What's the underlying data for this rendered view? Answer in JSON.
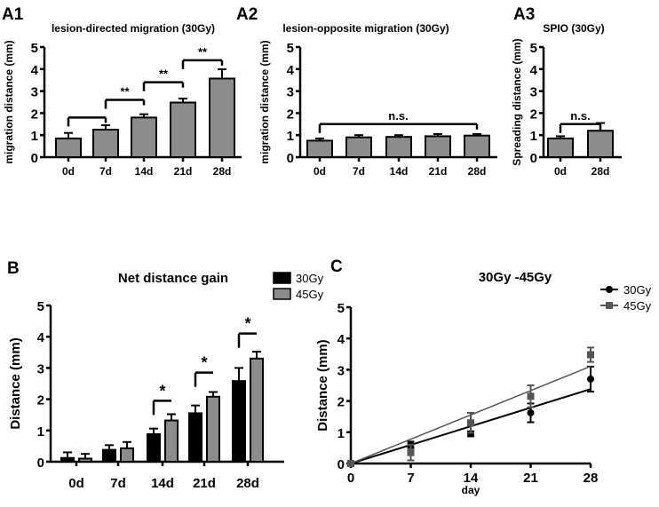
{
  "colors": {
    "dark": "#000000",
    "gray": "#8c8c8c",
    "line45": "#555555"
  },
  "chart_data": [
    {
      "id": "A1",
      "panel_label": "A1",
      "type": "bar",
      "title": "lesion-directed migration (30Gy)",
      "ylabel": "migration distance (mm)",
      "xlabel": "",
      "ylim": [
        0,
        5
      ],
      "yticks": [
        0,
        1,
        2,
        3,
        4,
        5
      ],
      "categories": [
        "0d",
        "7d",
        "14d",
        "21d",
        "28d"
      ],
      "series": [
        {
          "name": "30Gy",
          "values": [
            0.85,
            1.25,
            1.8,
            2.48,
            3.57
          ],
          "errors": [
            0.25,
            0.2,
            0.15,
            0.18,
            0.42
          ]
        }
      ],
      "annotations": [
        {
          "from": 0,
          "to": 1,
          "y": 1.8,
          "text": ""
        },
        {
          "from": 1,
          "to": 2,
          "y": 2.6,
          "text": "**"
        },
        {
          "from": 2,
          "to": 3,
          "y": 3.4,
          "text": "**"
        },
        {
          "from": 3,
          "to": 4,
          "y": 4.4,
          "text": "**"
        }
      ]
    },
    {
      "id": "A2",
      "panel_label": "A2",
      "type": "bar",
      "title": "lesion-opposite migration (30Gy)",
      "ylabel": "migration distance (mm)",
      "xlabel": "",
      "ylim": [
        0,
        5
      ],
      "yticks": [
        0,
        1,
        2,
        3,
        4,
        5
      ],
      "categories": [
        "0d",
        "7d",
        "14d",
        "21d",
        "28d"
      ],
      "series": [
        {
          "name": "30Gy",
          "values": [
            0.75,
            0.9,
            0.92,
            0.95,
            0.98
          ],
          "errors": [
            0.1,
            0.1,
            0.08,
            0.1,
            0.07
          ]
        }
      ],
      "annotations": [
        {
          "from": 0,
          "to": 4,
          "y": 1.5,
          "text": "n.s."
        }
      ]
    },
    {
      "id": "A3",
      "panel_label": "A3",
      "type": "bar",
      "title": "SPIO (30Gy)",
      "ylabel": "Spreading distance (mm)",
      "xlabel": "",
      "ylim": [
        0,
        5
      ],
      "yticks": [
        0,
        1,
        2,
        3,
        4,
        5
      ],
      "categories": [
        "0d",
        "28d"
      ],
      "series": [
        {
          "name": "30Gy",
          "values": [
            0.85,
            1.2
          ],
          "errors": [
            0.1,
            0.35
          ]
        }
      ],
      "annotations": [
        {
          "from": 0,
          "to": 1,
          "y": 1.5,
          "text": "n.s."
        }
      ]
    },
    {
      "id": "B",
      "panel_label": "B",
      "type": "bar",
      "title": "Net distance gain",
      "ylabel": "Distance (mm)",
      "xlabel": "",
      "ylim": [
        0,
        5
      ],
      "yticks": [
        0,
        1,
        2,
        3,
        4,
        5
      ],
      "legend": "top-right",
      "categories": [
        "0d",
        "7d",
        "14d",
        "21d",
        "28d"
      ],
      "series": [
        {
          "name": "30Gy",
          "values": [
            0.12,
            0.38,
            0.88,
            1.55,
            2.58
          ],
          "errors": [
            0.18,
            0.15,
            0.18,
            0.25,
            0.42
          ]
        },
        {
          "name": "45Gy",
          "values": [
            0.1,
            0.43,
            1.32,
            2.08,
            3.3
          ],
          "errors": [
            0.15,
            0.2,
            0.2,
            0.15,
            0.22
          ]
        }
      ],
      "annotations": [
        {
          "group": 2,
          "y": 1.95,
          "text": "*"
        },
        {
          "group": 3,
          "y": 2.85,
          "text": "*"
        },
        {
          "group": 4,
          "y": 4.1,
          "text": "*"
        }
      ]
    },
    {
      "id": "C",
      "panel_label": "C",
      "type": "line",
      "title": "30Gy -45Gy",
      "ylabel": "Distance (mm)",
      "xlabel": "day",
      "ylim": [
        0,
        5
      ],
      "xlim": [
        0,
        28
      ],
      "yticks": [
        0,
        1,
        2,
        3,
        4,
        5
      ],
      "xticks": [
        0,
        7,
        14,
        21,
        28
      ],
      "legend": "top-right",
      "series": [
        {
          "name": "30Gy",
          "x": [
            0,
            7,
            14,
            21,
            28
          ],
          "values": [
            0,
            0.6,
            0.95,
            1.62,
            2.7
          ],
          "errors": [
            0,
            0.1,
            0.08,
            0.3,
            0.4
          ],
          "fit_slope": 0.085
        },
        {
          "name": "45Gy",
          "x": [
            0,
            7,
            14,
            21,
            28
          ],
          "values": [
            0,
            0.35,
            1.3,
            2.15,
            3.48
          ],
          "errors": [
            0,
            0.25,
            0.32,
            0.35,
            0.23
          ],
          "fit_slope": 0.111
        }
      ]
    }
  ]
}
